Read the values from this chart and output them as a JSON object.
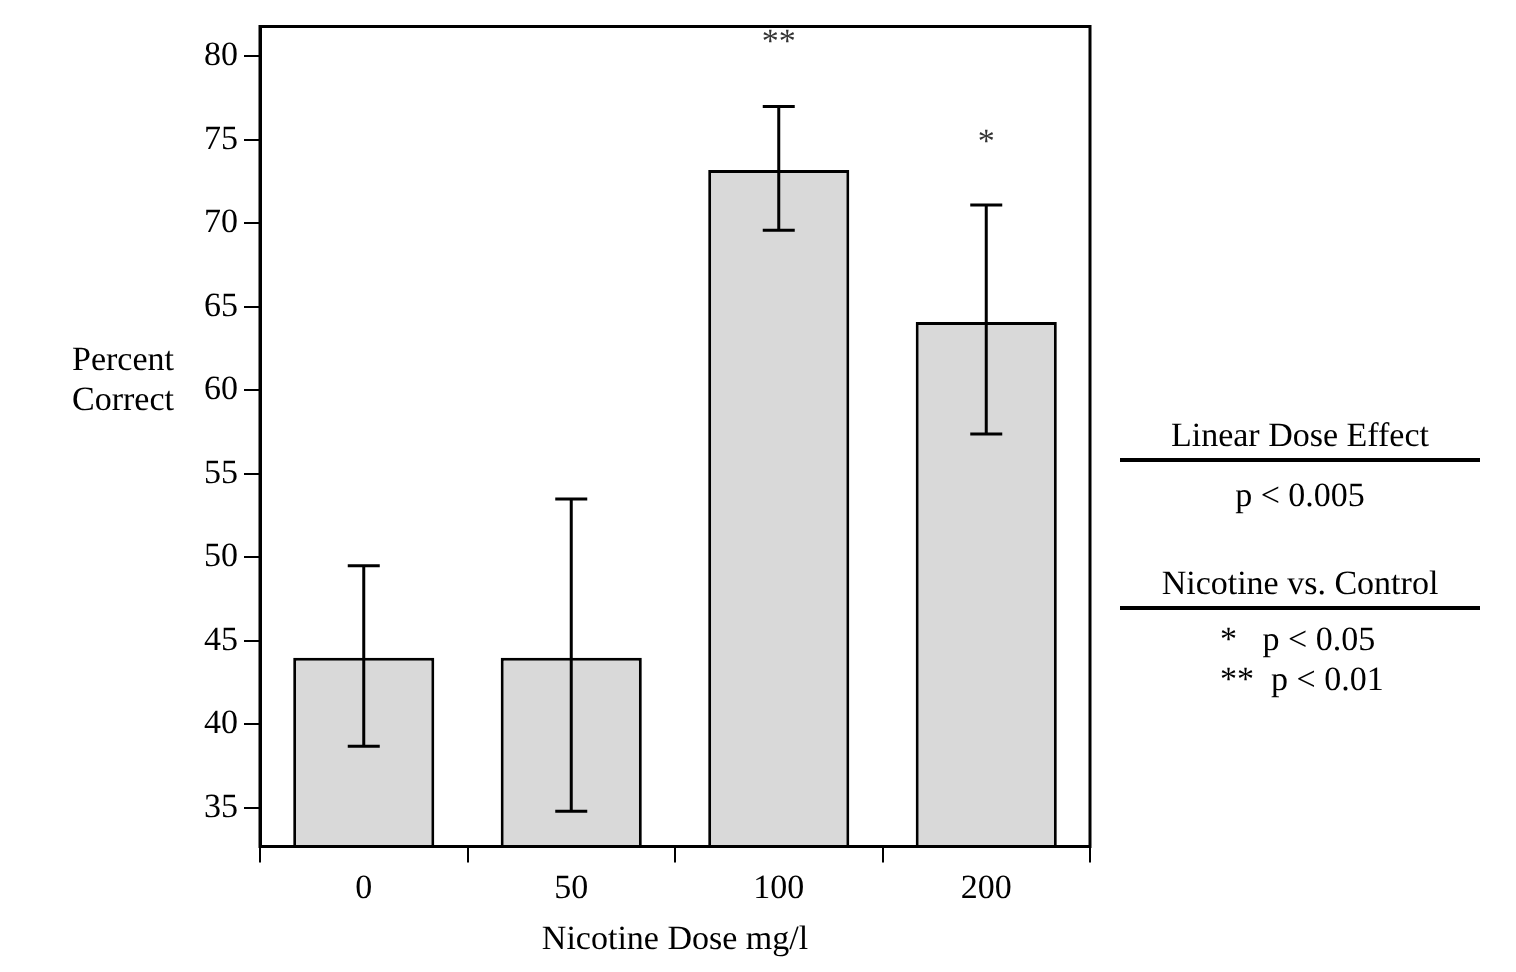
{
  "chart_data": {
    "type": "bar",
    "xlabel": "Nicotine Dose mg/l",
    "ylabel": "Percent Correct",
    "categories": [
      "0",
      "50",
      "100",
      "200"
    ],
    "values": [
      44.0,
      44.0,
      73.2,
      64.1
    ],
    "errors": [
      [
        38.7,
        49.5
      ],
      [
        34.8,
        53.5
      ],
      [
        69.6,
        77.0
      ],
      [
        57.4,
        71.1
      ]
    ],
    "color": "#d9d9d9",
    "ylim": [
      32.7,
      81.8
    ],
    "yticks": [
      35,
      40,
      45,
      50,
      55,
      60,
      65,
      70,
      75,
      80
    ],
    "legend": false,
    "annotations": [
      "**",
      "*",
      "Linear Dose Effect",
      "p < 0.005",
      "Nicotine vs. Control",
      "*   p < 0.05",
      "**  p < 0.01"
    ]
  }
}
